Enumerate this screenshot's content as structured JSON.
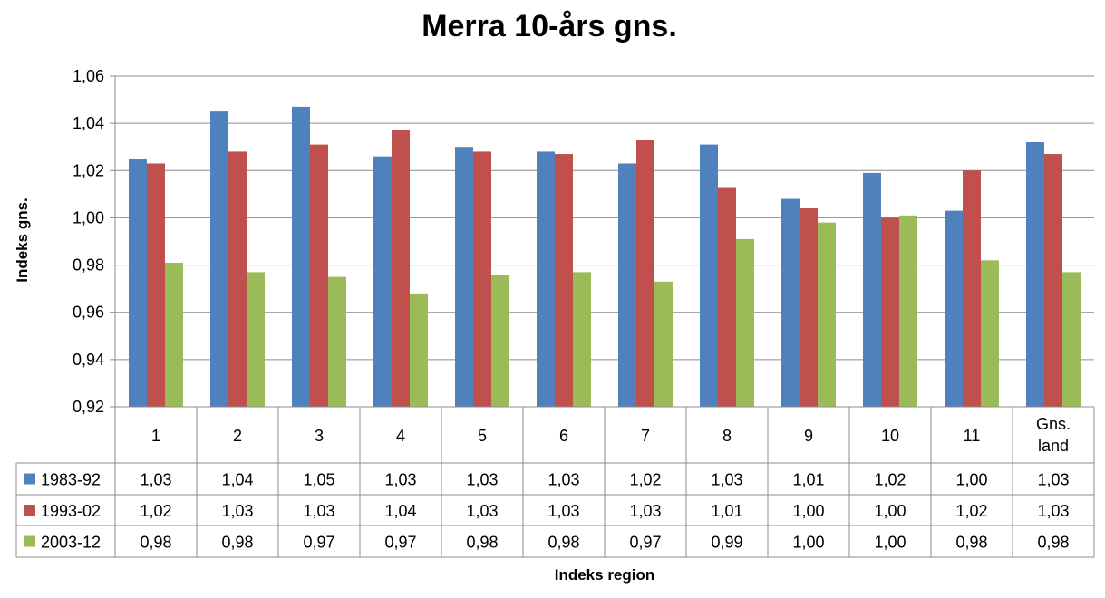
{
  "chart_data": {
    "type": "bar",
    "title": "Merra 10-års gns.",
    "ylabel": "Indeks gns.",
    "xlabel": "Indeks region",
    "ylim": [
      0.92,
      1.06
    ],
    "yticks": [
      "0,92",
      "0,94",
      "0,96",
      "0,98",
      "1,00",
      "1,02",
      "1,04",
      "1,06"
    ],
    "ytick_values": [
      0.92,
      0.94,
      0.96,
      0.98,
      1.0,
      1.02,
      1.04,
      1.06
    ],
    "categories": [
      "1",
      "2",
      "3",
      "4",
      "5",
      "6",
      "7",
      "8",
      "9",
      "10",
      "11",
      "Gns. land"
    ],
    "grid": true,
    "legend": "data-table",
    "series": [
      {
        "name": "1983-92",
        "color": "#4f81bd",
        "values": [
          1.025,
          1.045,
          1.047,
          1.026,
          1.03,
          1.028,
          1.023,
          1.031,
          1.008,
          1.019,
          1.003,
          1.032
        ],
        "labels": [
          "1,03",
          "1,04",
          "1,05",
          "1,03",
          "1,03",
          "1,03",
          "1,02",
          "1,03",
          "1,01",
          "1,02",
          "1,00",
          "1,03"
        ]
      },
      {
        "name": "1993-02",
        "color": "#c0504d",
        "values": [
          1.023,
          1.028,
          1.031,
          1.037,
          1.028,
          1.027,
          1.033,
          1.013,
          1.004,
          1.0,
          1.02,
          1.027
        ],
        "labels": [
          "1,02",
          "1,03",
          "1,03",
          "1,04",
          "1,03",
          "1,03",
          "1,03",
          "1,01",
          "1,00",
          "1,00",
          "1,02",
          "1,03"
        ]
      },
      {
        "name": "2003-12",
        "color": "#9bbb59",
        "values": [
          0.981,
          0.977,
          0.975,
          0.968,
          0.976,
          0.977,
          0.973,
          0.991,
          0.998,
          1.001,
          0.982,
          0.977
        ],
        "labels": [
          "0,98",
          "0,98",
          "0,97",
          "0,97",
          "0,98",
          "0,98",
          "0,97",
          "0,99",
          "1,00",
          "1,00",
          "0,98",
          "0,98"
        ]
      }
    ]
  }
}
